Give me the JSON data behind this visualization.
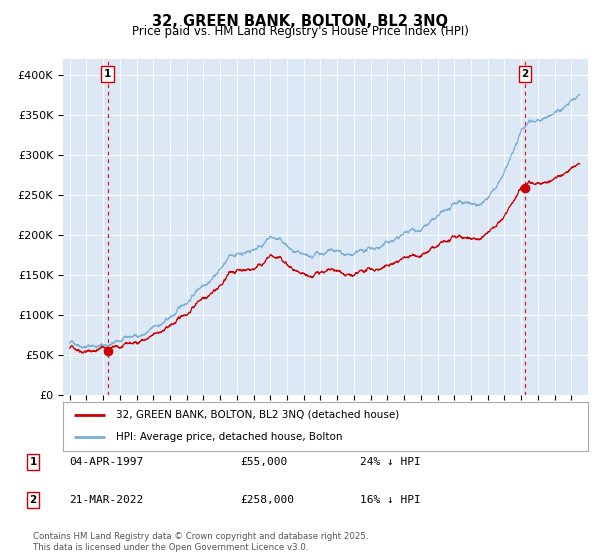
{
  "title": "32, GREEN BANK, BOLTON, BL2 3NQ",
  "subtitle": "Price paid vs. HM Land Registry's House Price Index (HPI)",
  "bg_color": "#ffffff",
  "plot_bg_color": "#dce8f5",
  "ylim": [
    0,
    420000
  ],
  "yticks": [
    0,
    50000,
    100000,
    150000,
    200000,
    250000,
    300000,
    350000,
    400000
  ],
  "ytick_labels": [
    "£0",
    "£50K",
    "£100K",
    "£150K",
    "£200K",
    "£250K",
    "£300K",
    "£350K",
    "£400K"
  ],
  "sale1_price": 55000,
  "sale1_year": 1997.27,
  "sale2_price": 258000,
  "sale2_year": 2022.22,
  "legend_label_red": "32, GREEN BANK, BOLTON, BL2 3NQ (detached house)",
  "legend_label_blue": "HPI: Average price, detached house, Bolton",
  "annotation1_text": "04-APR-1997",
  "annotation1_price": "£55,000",
  "annotation1_hpi": "24% ↓ HPI",
  "annotation2_text": "21-MAR-2022",
  "annotation2_price": "£258,000",
  "annotation2_hpi": "16% ↓ HPI",
  "footer": "Contains HM Land Registry data © Crown copyright and database right 2025.\nThis data is licensed under the Open Government Licence v3.0.",
  "red_color": "#cc0000",
  "blue_color": "#7aaed4",
  "grid_color": "#ffffff"
}
